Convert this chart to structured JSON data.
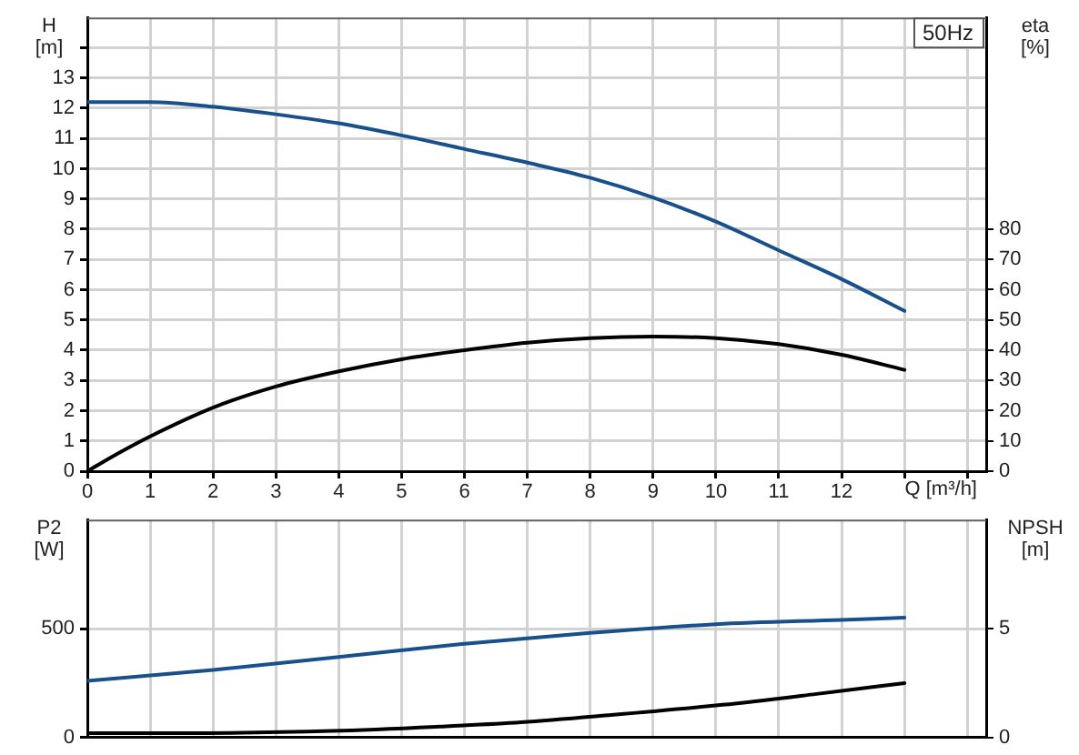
{
  "chart_data": [
    {
      "type": "line",
      "title": "50Hz",
      "xlabel": "Q [m³/h]",
      "ylabel": "H\n[m]",
      "y2label": "eta\n[%]",
      "x": [
        0,
        0.5,
        1,
        2,
        3,
        4,
        5,
        6,
        7,
        8,
        9,
        10,
        11,
        12,
        13
      ],
      "series": [
        {
          "color": "#19508c",
          "values": [
            12.2,
            12.2,
            12.2,
            12.05,
            11.8,
            11.5,
            11.1,
            10.65,
            10.2,
            9.7,
            9.05,
            8.25,
            7.3,
            6.35,
            5.3
          ]
        },
        {
          "color": "#000000",
          "axis": "y2",
          "values": [
            0,
            6,
            11.5,
            21,
            28,
            33,
            37,
            40,
            42.5,
            44,
            44.5,
            44,
            42,
            38.5,
            33.5
          ]
        }
      ],
      "xlim": [
        0,
        14.3
      ],
      "xticks": [
        0,
        1,
        2,
        3,
        4,
        5,
        6,
        7,
        8,
        9,
        10,
        11,
        12,
        {
          "value": 13,
          "label": null
        },
        {
          "value": 14,
          "label": null
        }
      ],
      "ylim": [
        0,
        15
      ],
      "yticks": [
        0,
        1,
        2,
        3,
        4,
        5,
        6,
        7,
        8,
        9,
        10,
        11,
        12,
        13,
        {
          "value": 14,
          "label": null
        }
      ],
      "y2lim": [
        0,
        150
      ],
      "y2ticks": [
        0,
        10,
        20,
        30,
        40,
        50,
        60,
        70,
        80
      ],
      "grid": true
    },
    {
      "type": "line",
      "ylabel": "P2\n[W]",
      "y2label": "NPSH\n[m]",
      "series": [
        {
          "color": "#19508c",
          "x": [
            0,
            2,
            4,
            6,
            8,
            10,
            12,
            13
          ],
          "values": [
            260,
            310,
            370,
            430,
            480,
            520,
            540,
            550
          ]
        },
        {
          "color": "#000000",
          "axis": "y2",
          "x": [
            0,
            1.5,
            3.9,
            5.6,
            6.9,
            8.2,
            10.1,
            11.6,
            13
          ],
          "values": [
            0.2,
            0.2,
            0.3,
            0.5,
            0.7,
            1.0,
            1.5,
            2.0,
            2.5
          ]
        }
      ],
      "xlim": [
        0,
        14.3
      ],
      "xticks": [
        0,
        1,
        2,
        3,
        4,
        5,
        6,
        7,
        8,
        9,
        10,
        11,
        12,
        13,
        14
      ],
      "ylim": [
        0,
        1000
      ],
      "yticks": [
        0,
        500
      ],
      "y2lim": [
        0,
        10
      ],
      "y2ticks": [
        0,
        5
      ],
      "grid": true,
      "tick_labels": "y"
    }
  ]
}
